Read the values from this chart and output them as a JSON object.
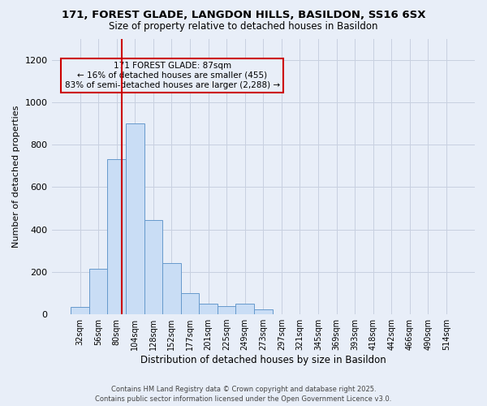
{
  "title_line1": "171, FOREST GLADE, LANGDON HILLS, BASILDON, SS16 6SX",
  "title_line2": "Size of property relative to detached houses in Basildon",
  "xlabel": "Distribution of detached houses by size in Basildon",
  "ylabel": "Number of detached properties",
  "footer_line1": "Contains HM Land Registry data © Crown copyright and database right 2025.",
  "footer_line2": "Contains public sector information licensed under the Open Government Licence v3.0.",
  "annotation_title": "171 FOREST GLADE: 87sqm",
  "annotation_line2": "← 16% of detached houses are smaller (455)",
  "annotation_line3": "83% of semi-detached houses are larger (2,288) →",
  "bar_color": "#c9ddf5",
  "bar_edge_color": "#6699cc",
  "vline_color": "#cc0000",
  "annotation_edge_color": "#cc0000",
  "grid_color": "#c8d0e0",
  "bg_color": "#e8eef8",
  "categories": [
    "32sqm",
    "56sqm",
    "80sqm",
    "104sqm",
    "128sqm",
    "152sqm",
    "177sqm",
    "201sqm",
    "225sqm",
    "249sqm",
    "273sqm",
    "297sqm",
    "321sqm",
    "345sqm",
    "369sqm",
    "393sqm",
    "418sqm",
    "442sqm",
    "466sqm",
    "490sqm",
    "514sqm"
  ],
  "values": [
    35,
    215,
    730,
    900,
    445,
    240,
    100,
    50,
    40,
    50,
    25,
    0,
    0,
    0,
    0,
    0,
    0,
    0,
    0,
    0,
    0
  ],
  "ylim": [
    0,
    1300
  ],
  "yticks": [
    0,
    200,
    400,
    600,
    800,
    1000,
    1200
  ],
  "property_sqm": 87,
  "bin_starts": [
    32,
    56,
    80,
    104,
    128,
    152,
    177,
    201,
    225,
    249,
    273,
    297,
    321,
    345,
    369,
    393,
    418,
    442,
    466,
    490,
    514
  ]
}
